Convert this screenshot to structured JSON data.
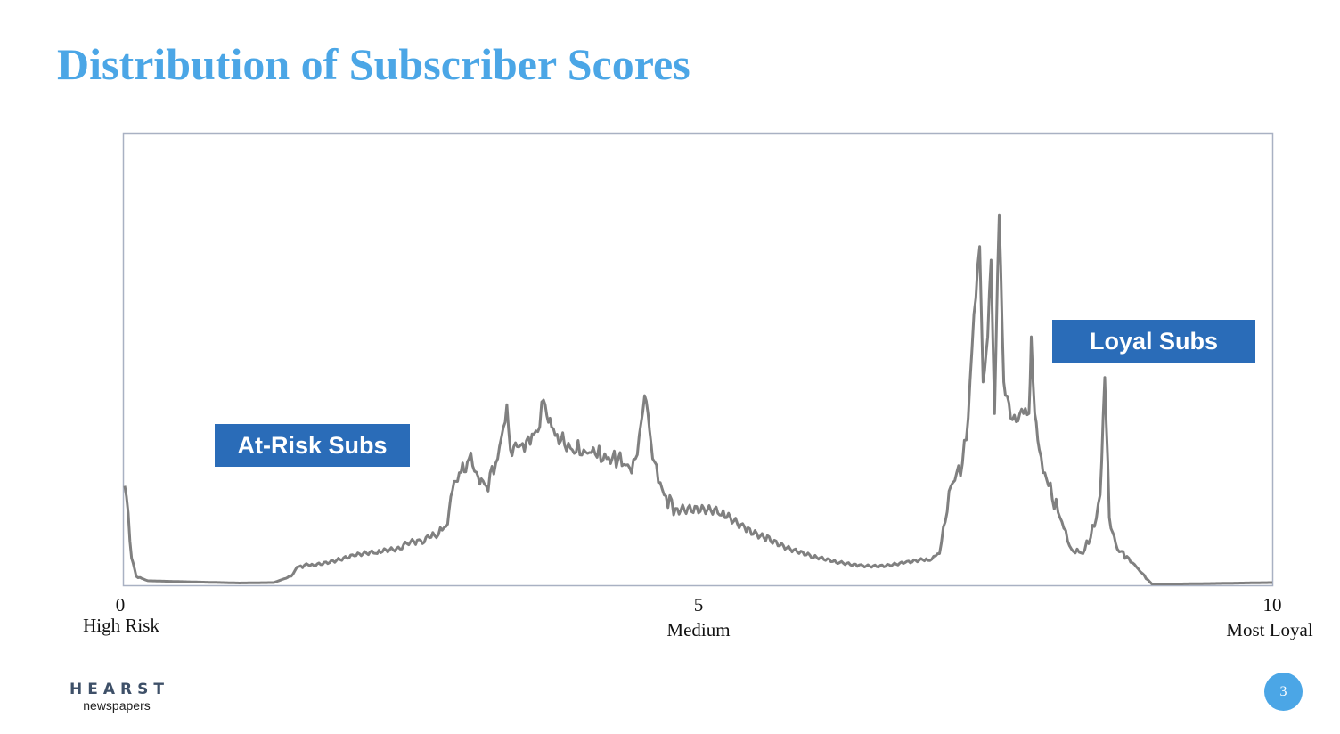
{
  "slide": {
    "title": "Distribution of Subscriber Scores",
    "page_number": "3",
    "logo": {
      "main": "HEARST",
      "sub": "newspapers"
    }
  },
  "callouts": {
    "at_risk": "At-Risk Subs",
    "loyal": "Loyal Subs"
  },
  "colors": {
    "title": "#4BA6E6",
    "callout": "#2A6CB8",
    "line": "#808080",
    "badge": "#4BA6E6",
    "plot_border": "#A9B1C3"
  },
  "chart_data": {
    "type": "line",
    "title": "Distribution of Subscriber Scores",
    "xlabel": "",
    "ylabel": "",
    "xlim": [
      0,
      10
    ],
    "ylim": [
      0,
      100
    ],
    "grid": false,
    "x_ticks": [
      {
        "value": 0,
        "label": "0",
        "sublabel": "High Risk"
      },
      {
        "value": 5,
        "label": "5",
        "sublabel": "Medium"
      },
      {
        "value": 10,
        "label": "10",
        "sublabel": "Most Loyal"
      }
    ],
    "series": [
      {
        "values": [
          [
            0.0,
            22
          ],
          [
            0.03,
            16
          ],
          [
            0.06,
            6
          ],
          [
            0.1,
            2
          ],
          [
            0.2,
            1
          ],
          [
            0.5,
            0.8
          ],
          [
            1.0,
            0.5
          ],
          [
            1.3,
            0.6
          ],
          [
            1.45,
            2
          ],
          [
            1.5,
            4
          ],
          [
            1.6,
            4.5
          ],
          [
            1.8,
            5.5
          ],
          [
            2.0,
            6.5
          ],
          [
            2.2,
            7
          ],
          [
            2.4,
            8
          ],
          [
            2.55,
            10
          ],
          [
            2.7,
            11
          ],
          [
            2.8,
            13
          ],
          [
            2.87,
            23
          ],
          [
            2.93,
            25
          ],
          [
            3.0,
            28
          ],
          [
            3.08,
            24
          ],
          [
            3.15,
            22
          ],
          [
            3.25,
            28
          ],
          [
            3.3,
            35
          ],
          [
            3.33,
            40
          ],
          [
            3.36,
            30
          ],
          [
            3.45,
            31
          ],
          [
            3.5,
            32
          ],
          [
            3.6,
            34
          ],
          [
            3.65,
            41
          ],
          [
            3.72,
            35
          ],
          [
            3.8,
            32
          ],
          [
            3.9,
            30
          ],
          [
            4.0,
            30
          ],
          [
            4.1,
            29
          ],
          [
            4.2,
            28
          ],
          [
            4.3,
            28
          ],
          [
            4.4,
            26
          ],
          [
            4.45,
            28
          ],
          [
            4.5,
            36
          ],
          [
            4.53,
            42
          ],
          [
            4.56,
            38
          ],
          [
            4.6,
            28
          ],
          [
            4.7,
            20
          ],
          [
            4.8,
            17
          ],
          [
            5.0,
            16
          ],
          [
            5.2,
            15.5
          ],
          [
            5.4,
            13
          ],
          [
            5.6,
            11
          ],
          [
            5.8,
            8
          ],
          [
            6.0,
            6
          ],
          [
            6.2,
            5
          ],
          [
            6.4,
            4.5
          ],
          [
            6.6,
            4.5
          ],
          [
            6.8,
            5
          ],
          [
            7.0,
            5.5
          ],
          [
            7.1,
            7
          ],
          [
            7.15,
            14
          ],
          [
            7.2,
            22
          ],
          [
            7.3,
            27
          ],
          [
            7.35,
            37
          ],
          [
            7.4,
            60
          ],
          [
            7.45,
            75
          ],
          [
            7.48,
            45
          ],
          [
            7.52,
            55
          ],
          [
            7.55,
            72
          ],
          [
            7.58,
            38
          ],
          [
            7.62,
            82
          ],
          [
            7.66,
            45
          ],
          [
            7.72,
            37
          ],
          [
            7.8,
            38
          ],
          [
            7.88,
            38
          ],
          [
            7.9,
            55
          ],
          [
            7.93,
            38
          ],
          [
            7.97,
            30
          ],
          [
            8.05,
            22
          ],
          [
            8.15,
            15
          ],
          [
            8.25,
            8
          ],
          [
            8.35,
            7
          ],
          [
            8.45,
            13
          ],
          [
            8.5,
            20
          ],
          [
            8.54,
            46
          ],
          [
            8.58,
            15
          ],
          [
            8.65,
            8
          ],
          [
            8.75,
            6
          ],
          [
            8.85,
            3
          ],
          [
            8.95,
            0.3
          ],
          [
            9.2,
            0.3
          ],
          [
            9.5,
            0.4
          ],
          [
            10.0,
            0.6
          ]
        ]
      }
    ]
  }
}
